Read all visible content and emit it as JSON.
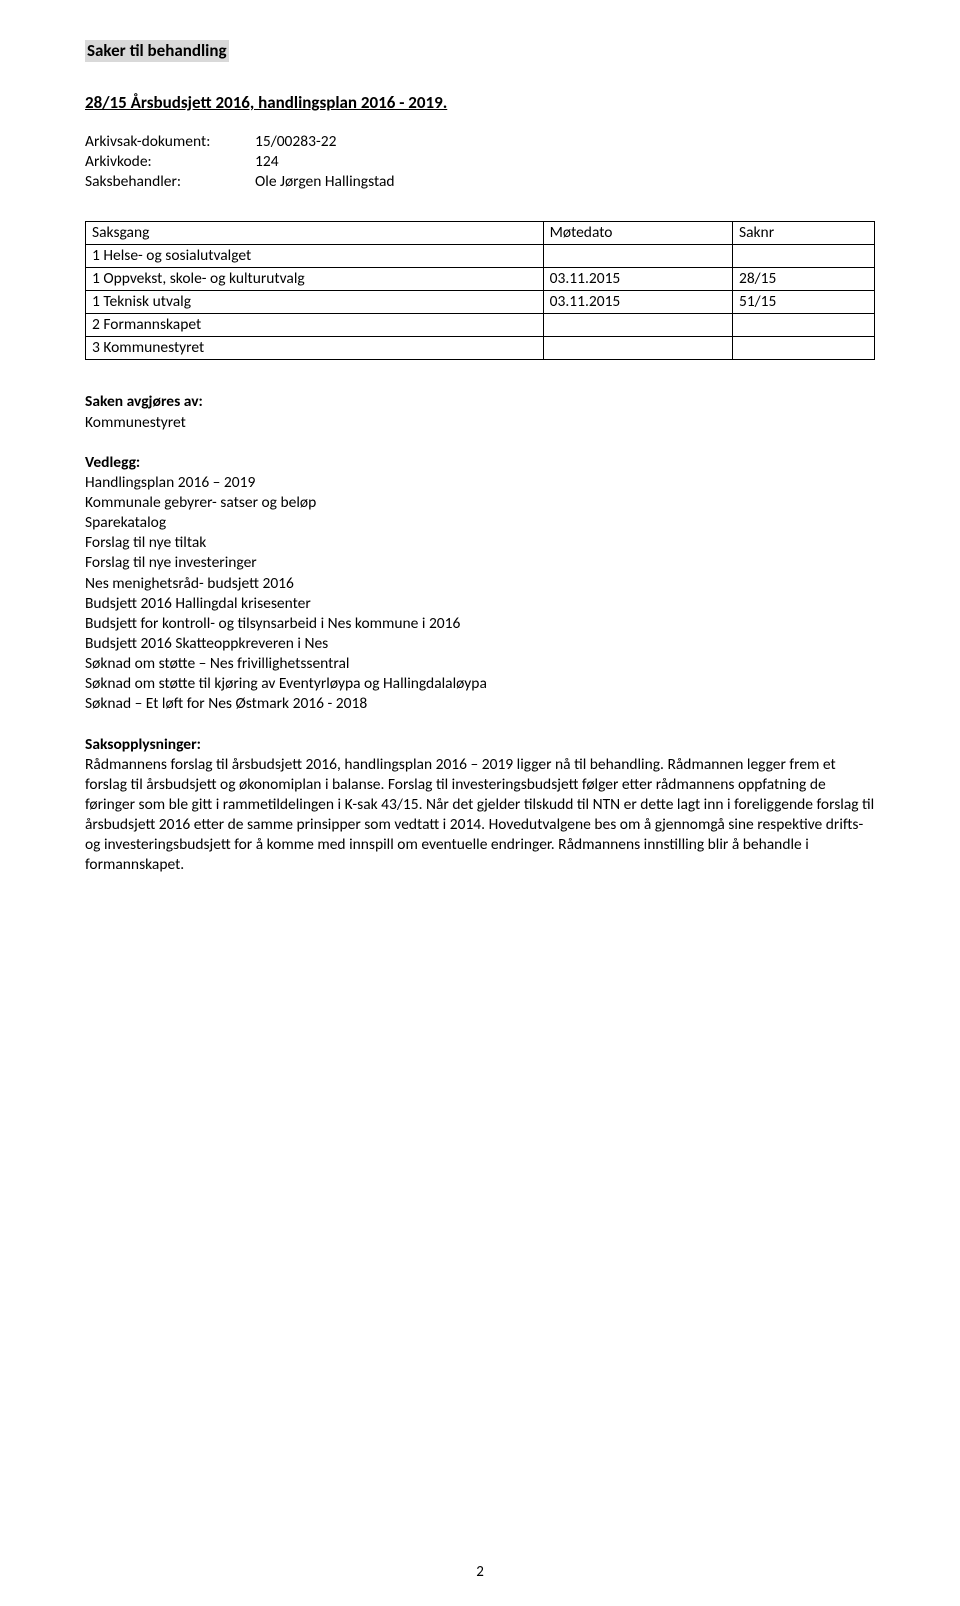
{
  "header": {
    "saker_til_behandling": "Saker til behandling",
    "case_title": "28/15 Årsbudsjett 2016, handlingsplan 2016 - 2019."
  },
  "arkiv": {
    "dokument_label": "Arkivsak-dokument:",
    "dokument_value": "15/00283-22",
    "arkivkode_label": "Arkivkode:",
    "arkivkode_value": "124",
    "saksbehandler_label": "Saksbehandler:",
    "saksbehandler_value": "Ole Jørgen Hallingstad"
  },
  "saksgang": {
    "headers": [
      "Saksgang",
      "Møtedato",
      "Saknr"
    ],
    "rows": [
      [
        "1 Helse- og sosialutvalget",
        "",
        ""
      ],
      [
        "1 Oppvekst, skole- og kulturutvalg",
        "03.11.2015",
        "28/15"
      ],
      [
        "1 Teknisk utvalg",
        "03.11.2015",
        "51/15"
      ],
      [
        "2 Formannskapet",
        "",
        ""
      ],
      [
        "3 Kommunestyret",
        "",
        ""
      ]
    ]
  },
  "avgjores": {
    "label": "Saken avgjøres av:",
    "value": "Kommunestyret"
  },
  "vedlegg": {
    "label": "Vedlegg:",
    "items": [
      "Handlingsplan 2016 – 2019",
      "Kommunale gebyrer- satser og beløp",
      "Sparekatalog",
      "Forslag til nye tiltak",
      "Forslag til nye investeringer",
      "Nes menighetsråd- budsjett 2016",
      "Budsjett 2016 Hallingdal krisesenter",
      "Budsjett for kontroll- og tilsynsarbeid i Nes kommune i 2016",
      "Budsjett 2016 Skatteoppkreveren i Nes",
      "Søknad om støtte – Nes frivillighetssentral",
      "Søknad om støtte til kjøring av Eventyrløypa og Hallingdalaløypa",
      "Søknad – Et løft for Nes Østmark 2016 - 2018"
    ]
  },
  "saksopplysninger": {
    "label": "Saksopplysninger:",
    "body": "Rådmannens forslag til årsbudsjett 2016, handlingsplan 2016 – 2019 ligger nå til behandling. Rådmannen legger frem et forslag til årsbudsjett og økonomiplan i balanse. Forslag til investeringsbudsjett følger etter rådmannens oppfatning de føringer som ble gitt i rammetildelingen i K-sak 43/15. Når det gjelder tilskudd til NTN er dette lagt inn i foreliggende forslag til årsbudsjett 2016 etter de samme prinsipper som vedtatt i 2014. Hovedutvalgene bes om å gjennomgå sine respektive drifts- og investeringsbudsjett for å komme med innspill om eventuelle endringer. Rådmannens innstilling blir å behandle i formannskapet."
  },
  "page_number": "2"
}
